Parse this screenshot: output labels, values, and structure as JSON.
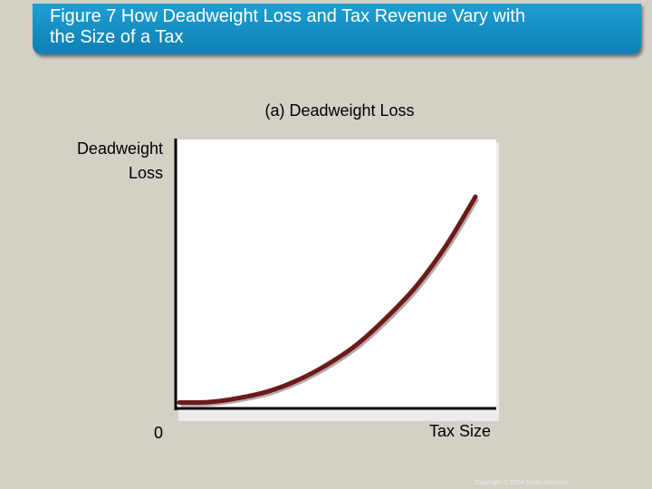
{
  "slide": {
    "title": "Figure 7 How Deadweight Loss and Tax Revenue Vary with\nthe Size of a Tax",
    "copyright": "Copyright © 2004  South-Western",
    "colors": {
      "background": "#d5d0c6",
      "title_bar": "#1a92c8",
      "curve": "#6b1a1a",
      "axes": "#000000",
      "plot_bg": "#ffffff"
    }
  },
  "chart_data": {
    "type": "line",
    "title": "(a) Deadweight Loss",
    "ylabel_lines": [
      "Deadweight",
      "Loss"
    ],
    "xlabel": "Tax Size",
    "origin_label": "0",
    "grid": false,
    "xlim": [
      0,
      1
    ],
    "ylim": [
      0,
      1
    ],
    "series": [
      {
        "x": [
          0,
          0.1,
          0.2,
          0.3,
          0.4,
          0.5,
          0.6,
          0.7,
          0.8,
          0.9,
          1.0
        ],
        "values": [
          0.01,
          0.012,
          0.03,
          0.06,
          0.11,
          0.18,
          0.27,
          0.39,
          0.53,
          0.71,
          0.93
        ]
      }
    ]
  }
}
